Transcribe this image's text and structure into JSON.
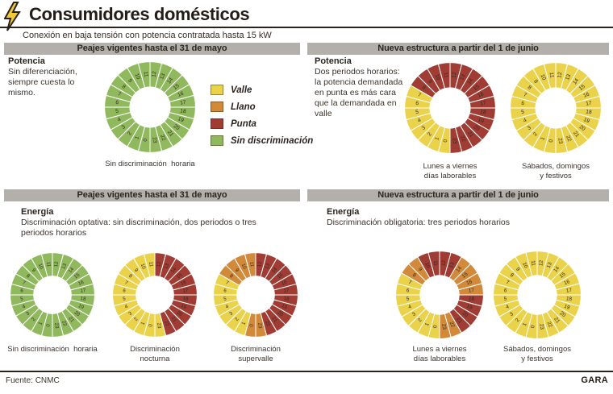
{
  "header": {
    "title": "Consumidores domésticos",
    "subtitle": "Conexión en baja tensión con potencia contratada hasta 15 kW"
  },
  "section_headers": {
    "old": "Peajes vigentes hasta el 31 de mayo",
    "new": "Nueva estructura a partir del 1 de junio"
  },
  "colors": {
    "valle": "#ead24b",
    "llano": "#d2893a",
    "punta": "#a03c33",
    "sin_discriminacion": "#90b95e",
    "bar_gray": "#b3b0ac",
    "ink": "#2a231c"
  },
  "legend": {
    "items": [
      {
        "key": "valle",
        "label": "Valle"
      },
      {
        "key": "llano",
        "label": "Llano"
      },
      {
        "key": "punta",
        "label": "Punta"
      },
      {
        "key": "sin_discriminacion",
        "label": "Sin discriminación"
      }
    ]
  },
  "power": {
    "old": {
      "title": "Potencia",
      "description": "Sin diferenciación, siempre cuesta lo mismo."
    },
    "new": {
      "title": "Potencia",
      "description": "Dos periodos horarios: la potencia demandada en punta es más cara que la demandada en valle"
    }
  },
  "energy": {
    "old": {
      "title": "Energía",
      "description": "Discriminación optativa: sin discriminación, dos periodos o tres periodos horarios"
    },
    "new": {
      "title": "Energía",
      "description": "Discriminación obligatoria: tres periodos horarios"
    }
  },
  "footer": {
    "source": "Fuente: CNMC",
    "credit": "GARA"
  },
  "chart_data": {
    "type": "pie",
    "description": "Eight 24-hour clock donut charts; each of the 24 hour slices is colored by tariff period (valle / llano / punta / sin discriminación). Hour 12 starts at top, hours run clockwise, hour 0 at bottom.",
    "legend_position": "top-left block between first two clocks",
    "clocks": [
      {
        "id": "power-old",
        "group": "Potencia — Peajes vigentes hasta el 31 de mayo",
        "caption": [
          "Sin discriminación  horaria"
        ],
        "segments": [
          {
            "from": 0,
            "to": 23,
            "period": "sin_discriminacion"
          }
        ]
      },
      {
        "id": "power-new-weekdays",
        "group": "Potencia — Nueva estructura a partir del 1 de junio",
        "caption": [
          "Lunes a viernes",
          "días laborables"
        ],
        "segments": [
          {
            "from": 0,
            "to": 7,
            "period": "valle"
          },
          {
            "from": 8,
            "to": 23,
            "period": "punta"
          }
        ]
      },
      {
        "id": "power-new-weekend",
        "group": "Potencia — Nueva estructura a partir del 1 de junio",
        "caption": [
          "Sábados, domingos",
          "y festivos"
        ],
        "segments": [
          {
            "from": 0,
            "to": 23,
            "period": "valle"
          }
        ]
      },
      {
        "id": "energy-old-flat",
        "group": "Energía — Peajes vigentes hasta el 31 de mayo",
        "caption": [
          "Sin discriminación  horaria"
        ],
        "segments": [
          {
            "from": 0,
            "to": 23,
            "period": "sin_discriminacion"
          }
        ]
      },
      {
        "id": "energy-old-nocturna",
        "group": "Energía — Peajes vigentes hasta el 31 de mayo",
        "caption": [
          "Discriminación",
          "nocturna"
        ],
        "segments": [
          {
            "from": 0,
            "to": 11,
            "period": "valle"
          },
          {
            "from": 12,
            "to": 22,
            "period": "punta"
          },
          {
            "from": 23,
            "to": 23,
            "period": "valle"
          }
        ]
      },
      {
        "id": "energy-old-supervalle",
        "group": "Energía — Peajes vigentes hasta el 31 de mayo",
        "caption": [
          "Discriminación",
          "supervalle"
        ],
        "segments": [
          {
            "from": 0,
            "to": 0,
            "period": "llano"
          },
          {
            "from": 1,
            "to": 7,
            "period": "valle"
          },
          {
            "from": 8,
            "to": 11,
            "period": "llano"
          },
          {
            "from": 12,
            "to": 22,
            "period": "punta"
          },
          {
            "from": 23,
            "to": 23,
            "period": "llano"
          }
        ]
      },
      {
        "id": "energy-new-weekdays",
        "group": "Energía — Nueva estructura a partir del 1 de junio",
        "caption": [
          "Lunes a viernes",
          "días laborables"
        ],
        "segments": [
          {
            "from": 0,
            "to": 7,
            "period": "valle"
          },
          {
            "from": 8,
            "to": 9,
            "period": "llano"
          },
          {
            "from": 10,
            "to": 13,
            "period": "punta"
          },
          {
            "from": 14,
            "to": 17,
            "period": "llano"
          },
          {
            "from": 18,
            "to": 21,
            "period": "punta"
          },
          {
            "from": 22,
            "to": 23,
            "period": "llano"
          }
        ]
      },
      {
        "id": "energy-new-weekend",
        "group": "Energía — Nueva estructura a partir del 1 de junio",
        "caption": [
          "Sábados, domingos",
          "y festivos"
        ],
        "segments": [
          {
            "from": 0,
            "to": 23,
            "period": "valle"
          }
        ]
      }
    ]
  }
}
